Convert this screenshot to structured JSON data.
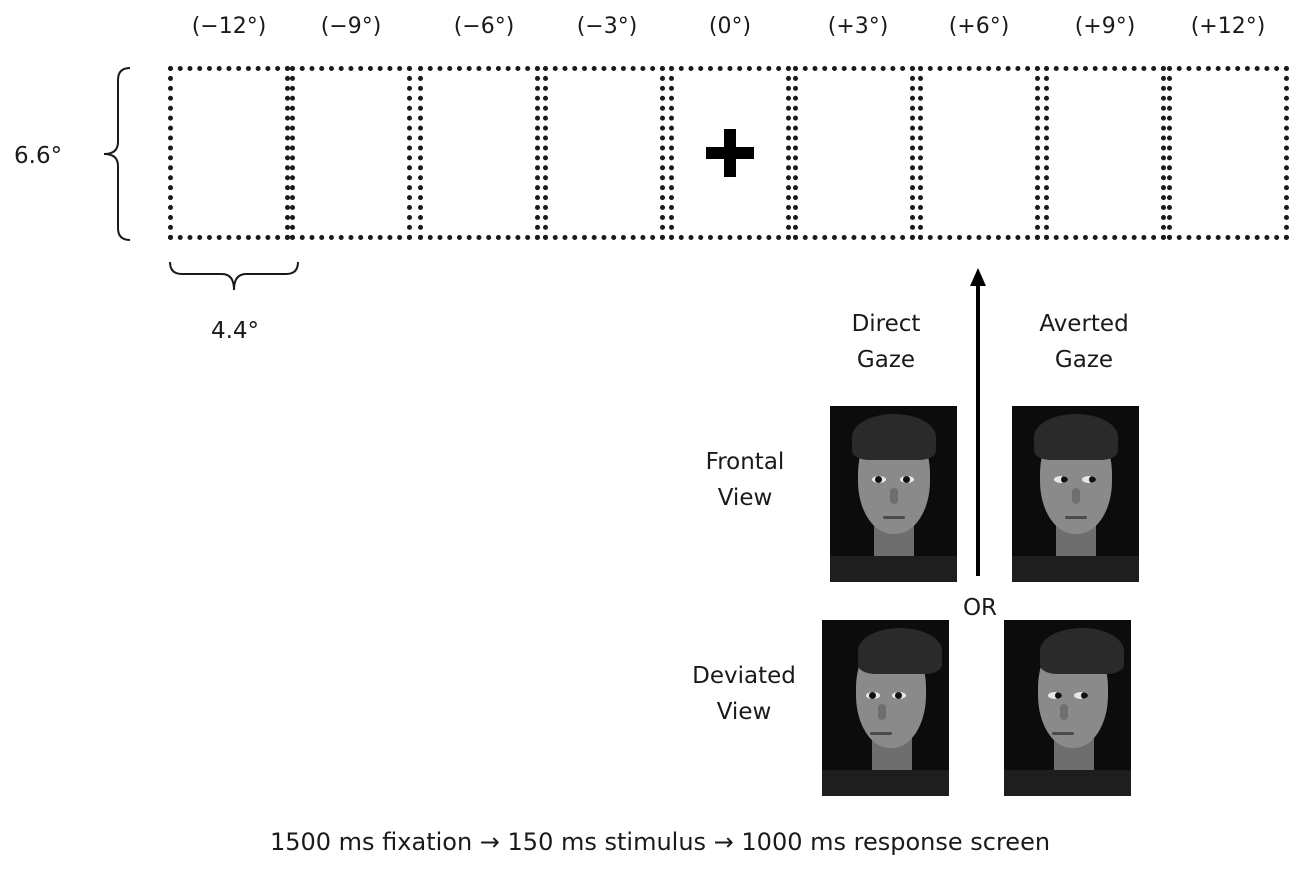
{
  "positions": [
    "(−12°)",
    "(−9°)",
    "(−6°)",
    "(−3°)",
    "(0°)",
    "(+3°)",
    "(+6°)",
    "(+9°)",
    "(+12°)"
  ],
  "height_label": "6.6°",
  "width_label": "4.4°",
  "direct_gaze_line1": "Direct",
  "direct_gaze_line2": "Gaze",
  "averted_gaze_line1": "Averted",
  "averted_gaze_line2": "Gaze",
  "frontal_view_line1": "Frontal",
  "frontal_view_line2": "View",
  "deviated_view_line1": "Deviated",
  "deviated_view_line2": "View",
  "or_label": "OR",
  "timeline": "1500 ms fixation → 150 ms stimulus → 1000 ms response screen",
  "fixation_symbol": "+",
  "icons": [
    "brace-icon",
    "arrow-up-icon",
    "fixation-cross-icon",
    "face-photo"
  ]
}
